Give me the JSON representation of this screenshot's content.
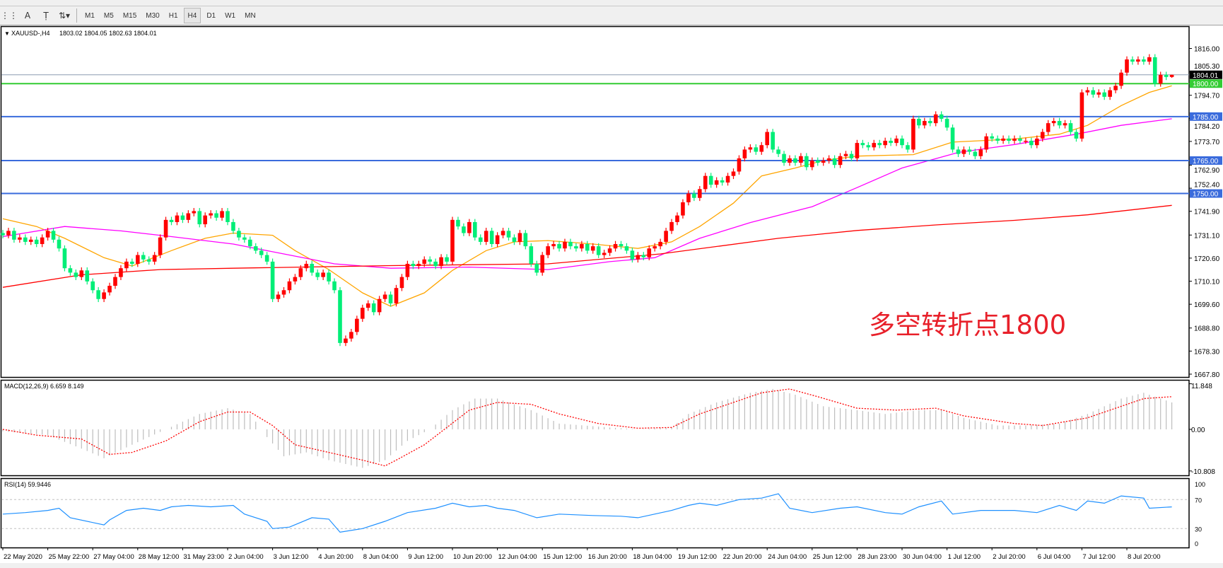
{
  "toolbar": {
    "icons": [
      "grid-f-icon",
      "text-a-icon",
      "text-label-icon",
      "arrows-icon"
    ],
    "timeframes": [
      "M1",
      "M5",
      "M15",
      "M30",
      "H1",
      "H4",
      "D1",
      "W1",
      "MN"
    ],
    "active_timeframe": "H4"
  },
  "header": {
    "symbol": "XAUUSD-,H4",
    "ohlc": "1803.02 1804.05 1802.63 1804.01"
  },
  "annotation": "多空转折点1800",
  "colors": {
    "bull": "#ff0000",
    "bear": "#00ee77",
    "ma_fast": "#ffa500",
    "ma_mid": "#ff00ff",
    "ma_slow": "#ff0000",
    "level_blue": "#3a6bdc",
    "level_green": "#33cc33",
    "macd_hist": "#bdbdbd",
    "macd_signal": "#ff0000",
    "rsi": "#1e90ff"
  },
  "chart_data": [
    {
      "type": "candlestick",
      "title": "XAUUSD-,H4",
      "ylim": [
        1666.5,
        1826
      ],
      "price_ticks": [
        "1816.00",
        "1805.30",
        "1794.70",
        "1784.20",
        "1773.70",
        "1762.90",
        "1752.40",
        "1741.90",
        "1731.10",
        "1720.60",
        "1710.10",
        "1699.60",
        "1688.80",
        "1678.30",
        "1667.80"
      ],
      "x_labels": [
        "22 May 2020",
        "25 May 22:00",
        "27 May 04:00",
        "28 May 12:00",
        "31 May 23:00",
        "2 Jun 04:00",
        "3 Jun 12:00",
        "4 Jun 20:00",
        "8 Jun 04:00",
        "9 Jun 12:00",
        "10 Jun 20:00",
        "12 Jun 04:00",
        "15 Jun 12:00",
        "16 Jun 20:00",
        "18 Jun 04:00",
        "19 Jun 12:00",
        "22 Jun 20:00",
        "24 Jun 04:00",
        "25 Jun 12:00",
        "28 Jun 23:00",
        "30 Jun 04:00",
        "1 Jul 12:00",
        "2 Jul 20:00",
        "6 Jul 04:00",
        "7 Jul 12:00",
        "8 Jul 20:00"
      ],
      "closes": [
        1731,
        1733,
        1729,
        1730,
        1728,
        1729,
        1727,
        1730,
        1733,
        1729,
        1725,
        1716,
        1714,
        1712,
        1715,
        1710,
        1706,
        1702,
        1705,
        1708,
        1712,
        1716,
        1719,
        1718,
        1722,
        1720,
        1719,
        1722,
        1730,
        1738,
        1737,
        1740,
        1738,
        1741,
        1742,
        1736,
        1740,
        1741,
        1739,
        1742,
        1737,
        1733,
        1730,
        1729,
        1726,
        1724,
        1722,
        1719,
        1702,
        1704,
        1706,
        1710,
        1712,
        1716,
        1718,
        1714,
        1712,
        1714,
        1710,
        1706,
        1682,
        1684,
        1687,
        1693,
        1698,
        1700,
        1696,
        1702,
        1704,
        1700,
        1707,
        1712,
        1718,
        1717,
        1718,
        1720,
        1719,
        1717,
        1721,
        1719,
        1738,
        1735,
        1732,
        1737,
        1730,
        1728,
        1733,
        1727,
        1731,
        1733,
        1730,
        1728,
        1732,
        1726,
        1718,
        1714,
        1722,
        1726,
        1727,
        1725,
        1728,
        1726,
        1725,
        1727,
        1724,
        1726,
        1722,
        1723,
        1725,
        1727,
        1726,
        1724,
        1720,
        1722,
        1721,
        1725,
        1726,
        1728,
        1733,
        1737,
        1740,
        1746,
        1750,
        1748,
        1752,
        1758,
        1754,
        1756,
        1755,
        1758,
        1760,
        1766,
        1770,
        1771,
        1769,
        1772,
        1778,
        1770,
        1768,
        1764,
        1766,
        1764,
        1767,
        1762,
        1765,
        1764,
        1765,
        1766,
        1763,
        1767,
        1768,
        1766,
        1773,
        1772,
        1771,
        1773,
        1772,
        1774,
        1773,
        1775,
        1772,
        1770,
        1784,
        1781,
        1783,
        1782,
        1786,
        1784,
        1780,
        1770,
        1768,
        1770,
        1769,
        1767,
        1770,
        1776,
        1775,
        1774,
        1775,
        1774,
        1775,
        1774,
        1774,
        1772,
        1775,
        1778,
        1782,
        1783,
        1781,
        1782,
        1778,
        1775,
        1796,
        1797,
        1795,
        1796,
        1794,
        1797,
        1799,
        1805,
        1811,
        1810,
        1811,
        1810,
        1812,
        1800,
        1804,
        1803.02,
        1804.01
      ],
      "last_bar": {
        "open": 1803.02,
        "high": 1804.05,
        "low": 1802.63,
        "close": 1804.01
      },
      "moving_averages": [
        {
          "color_key": "ma_fast",
          "points": [
            [
              0,
              1738.5
            ],
            [
              6,
              1735
            ],
            [
              11,
              1729.6
            ],
            [
              18,
              1720.8
            ],
            [
              23,
              1717
            ],
            [
              30,
              1724
            ],
            [
              36,
              1729.6
            ],
            [
              41,
              1732
            ],
            [
              48,
              1731
            ],
            [
              52,
              1724
            ],
            [
              58,
              1715.4
            ],
            [
              64,
              1704.8
            ],
            [
              69,
              1698.7
            ],
            [
              75,
              1704.8
            ],
            [
              80,
              1715
            ],
            [
              86,
              1724
            ],
            [
              91,
              1728
            ],
            [
              97,
              1728.6
            ],
            [
              105,
              1727
            ],
            [
              113,
              1725
            ],
            [
              119,
              1728
            ],
            [
              124,
              1735
            ],
            [
              130,
              1745.6
            ],
            [
              135,
              1758
            ],
            [
              141,
              1761.6
            ],
            [
              146,
              1765
            ],
            [
              152,
              1767
            ],
            [
              162,
              1767.7
            ],
            [
              169,
              1773.4
            ],
            [
              180,
              1774.8
            ],
            [
              188,
              1777
            ],
            [
              193,
              1781
            ],
            [
              199,
              1790
            ],
            [
              204,
              1796
            ],
            [
              208,
              1799
            ]
          ]
        },
        {
          "color_key": "ma_mid",
          "points": [
            [
              0,
              1730.4
            ],
            [
              11,
              1735
            ],
            [
              21,
              1733
            ],
            [
              30,
              1730.4
            ],
            [
              41,
              1727
            ],
            [
              50,
              1722.5
            ],
            [
              59,
              1718
            ],
            [
              69,
              1716
            ],
            [
              83,
              1716.5
            ],
            [
              97,
              1715.4
            ],
            [
              108,
              1719
            ],
            [
              116,
              1720.8
            ],
            [
              124,
              1729.6
            ],
            [
              133,
              1736.8
            ],
            [
              144,
              1744
            ],
            [
              152,
              1752.7
            ],
            [
              160,
              1761.6
            ],
            [
              170,
              1768.7
            ],
            [
              180,
              1772.3
            ],
            [
              191,
              1777
            ],
            [
              199,
              1781
            ],
            [
              208,
              1784
            ]
          ]
        },
        {
          "color_key": "ma_slow",
          "points": [
            [
              0,
              1707.3
            ],
            [
              14,
              1713
            ],
            [
              28,
              1715.4
            ],
            [
              41,
              1716
            ],
            [
              69,
              1717.2
            ],
            [
              97,
              1718
            ],
            [
              117,
              1722.5
            ],
            [
              138,
              1729.6
            ],
            [
              152,
              1733.2
            ],
            [
              166,
              1735.7
            ],
            [
              180,
              1737.8
            ],
            [
              193,
              1740.3
            ],
            [
              208,
              1744.6
            ]
          ]
        }
      ],
      "horizontal_levels": [
        {
          "price": "1800.00",
          "color_key": "level_green"
        },
        {
          "price": "1785.00",
          "color_key": "level_blue"
        },
        {
          "price": "1765.00",
          "color_key": "level_blue"
        },
        {
          "price": "1750.00",
          "color_key": "level_blue"
        }
      ],
      "current_price": "1804.01"
    },
    {
      "type": "bar",
      "title": "MACD(12,26,9) 6.659 8.149",
      "ylim": [
        -10.808,
        11.848
      ],
      "y_ticks": [
        "11.848",
        "0.00",
        "-10.808"
      ],
      "macd_points": [
        [
          0,
          -0.5
        ],
        [
          8,
          -1.5
        ],
        [
          14,
          -5
        ],
        [
          18,
          -7.5
        ],
        [
          23,
          -4
        ],
        [
          29,
          0
        ],
        [
          35,
          4
        ],
        [
          40,
          5.5
        ],
        [
          44,
          4
        ],
        [
          47,
          -2
        ],
        [
          50,
          -7
        ],
        [
          54,
          -6
        ],
        [
          58,
          -8
        ],
        [
          61,
          -9
        ],
        [
          64,
          -10
        ],
        [
          68,
          -8
        ],
        [
          72,
          -3
        ],
        [
          76,
          0
        ],
        [
          80,
          5
        ],
        [
          84,
          8
        ],
        [
          88,
          8
        ],
        [
          94,
          5
        ],
        [
          99,
          1.5
        ],
        [
          108,
          0.5
        ],
        [
          113,
          0
        ],
        [
          119,
          0.5
        ],
        [
          122,
          4
        ],
        [
          127,
          7
        ],
        [
          133,
          9.5
        ],
        [
          137,
          10.5
        ],
        [
          141,
          9
        ],
        [
          146,
          6
        ],
        [
          152,
          5
        ],
        [
          157,
          4
        ],
        [
          163,
          5
        ],
        [
          167,
          5
        ],
        [
          171,
          3
        ],
        [
          177,
          1
        ],
        [
          182,
          1
        ],
        [
          188,
          1.5
        ],
        [
          193,
          4
        ],
        [
          199,
          8
        ],
        [
          203,
          9.5
        ],
        [
          208,
          7
        ]
      ],
      "signal_points": [
        [
          0,
          0
        ],
        [
          6,
          -1.5
        ],
        [
          14,
          -2.5
        ],
        [
          19,
          -6.5
        ],
        [
          23,
          -6
        ],
        [
          29,
          -3
        ],
        [
          35,
          2
        ],
        [
          40,
          4.5
        ],
        [
          44,
          4.5
        ],
        [
          48,
          1
        ],
        [
          52,
          -4
        ],
        [
          58,
          -6
        ],
        [
          64,
          -8
        ],
        [
          68,
          -9.5
        ],
        [
          70,
          -8
        ],
        [
          75,
          -4
        ],
        [
          79,
          0.5
        ],
        [
          83,
          5
        ],
        [
          88,
          7
        ],
        [
          94,
          6.5
        ],
        [
          99,
          4
        ],
        [
          106,
          1.5
        ],
        [
          113,
          0.3
        ],
        [
          119,
          0.5
        ],
        [
          124,
          4
        ],
        [
          130,
          7
        ],
        [
          135,
          9.5
        ],
        [
          140,
          10.5
        ],
        [
          145,
          8.5
        ],
        [
          152,
          5.5
        ],
        [
          159,
          5
        ],
        [
          166,
          5.5
        ],
        [
          171,
          3.5
        ],
        [
          180,
          1.5
        ],
        [
          185,
          1
        ],
        [
          193,
          3
        ],
        [
          199,
          6
        ],
        [
          203,
          8
        ],
        [
          208,
          8.5
        ]
      ]
    },
    {
      "type": "line",
      "title": "RSI(14) 59.9446",
      "ylim": [
        0,
        100
      ],
      "y_ticks": [
        "100",
        "70",
        "30",
        "0"
      ],
      "levels": [
        70,
        30
      ],
      "points": [
        [
          0,
          50
        ],
        [
          4,
          52
        ],
        [
          8,
          55
        ],
        [
          10,
          58
        ],
        [
          12,
          45
        ],
        [
          18,
          35
        ],
        [
          19,
          42
        ],
        [
          22,
          55
        ],
        [
          25,
          58
        ],
        [
          28,
          55
        ],
        [
          30,
          60
        ],
        [
          33,
          62
        ],
        [
          37,
          60
        ],
        [
          41,
          62
        ],
        [
          43,
          50
        ],
        [
          47,
          40
        ],
        [
          48,
          30
        ],
        [
          51,
          32
        ],
        [
          55,
          45
        ],
        [
          58,
          43
        ],
        [
          60,
          25
        ],
        [
          64,
          30
        ],
        [
          68,
          40
        ],
        [
          72,
          52
        ],
        [
          77,
          58
        ],
        [
          80,
          65
        ],
        [
          83,
          60
        ],
        [
          86,
          62
        ],
        [
          88,
          58
        ],
        [
          91,
          55
        ],
        [
          95,
          45
        ],
        [
          99,
          50
        ],
        [
          105,
          48
        ],
        [
          110,
          47
        ],
        [
          113,
          45
        ],
        [
          119,
          55
        ],
        [
          122,
          62
        ],
        [
          124,
          65
        ],
        [
          127,
          62
        ],
        [
          131,
          70
        ],
        [
          135,
          72
        ],
        [
          138,
          78
        ],
        [
          140,
          58
        ],
        [
          144,
          52
        ],
        [
          149,
          58
        ],
        [
          152,
          60
        ],
        [
          157,
          52
        ],
        [
          160,
          50
        ],
        [
          163,
          60
        ],
        [
          167,
          68
        ],
        [
          169,
          50
        ],
        [
          174,
          55
        ],
        [
          180,
          55
        ],
        [
          184,
          52
        ],
        [
          188,
          62
        ],
        [
          191,
          55
        ],
        [
          193,
          68
        ],
        [
          196,
          65
        ],
        [
          199,
          75
        ],
        [
          203,
          72
        ],
        [
          204,
          58
        ],
        [
          208,
          59.9
        ]
      ]
    }
  ]
}
